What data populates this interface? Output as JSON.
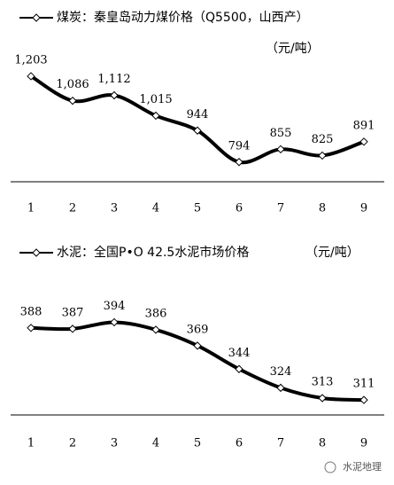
{
  "chart_data": [
    {
      "type": "line",
      "title": "煤炭：秦皇岛动力煤价格（Q5500，山西产）",
      "unit": "（元/吨）",
      "categories": [
        "1",
        "2",
        "3",
        "4",
        "5",
        "6",
        "7",
        "8",
        "9"
      ],
      "series": [
        {
          "name": "煤炭：秦皇岛动力煤价格（Q5500，山西产）",
          "color": "#000000",
          "values": [
            1203,
            1086,
            1112,
            1015,
            944,
            794,
            855,
            825,
            891
          ],
          "value_labels": [
            "1,203",
            "1,086",
            "1,112",
            "1,015",
            "944",
            "794",
            "855",
            "825",
            "891"
          ]
        }
      ],
      "ylim": [
        700,
        1300
      ]
    },
    {
      "type": "line",
      "title": "水泥：全国P•O 42.5水泥市场价格",
      "unit": "（元/吨）",
      "categories": [
        "1",
        "2",
        "3",
        "4",
        "5",
        "6",
        "7",
        "8",
        "9"
      ],
      "series": [
        {
          "name": "水泥：全国P•O 42.5水泥市场价格",
          "color": "#000000",
          "values": [
            388,
            387,
            394,
            386,
            369,
            344,
            324,
            313,
            311
          ]
        }
      ],
      "ylim": [
        295,
        420
      ]
    }
  ],
  "watermark": "水泥地理"
}
